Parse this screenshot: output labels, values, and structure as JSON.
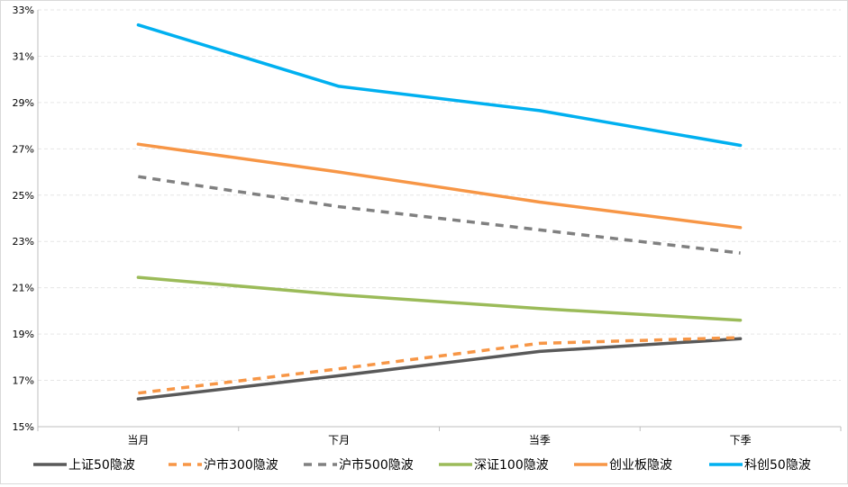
{
  "chart_data": {
    "type": "line",
    "title": "",
    "xlabel": "",
    "ylabel": "",
    "categories": [
      "当月",
      "下月",
      "当季",
      "下季"
    ],
    "ylim": [
      15,
      33
    ],
    "yticks": [
      15,
      17,
      19,
      21,
      23,
      25,
      27,
      29,
      31,
      33
    ],
    "ytick_labels": [
      "15%",
      "17%",
      "19%",
      "21%",
      "23%",
      "25%",
      "27%",
      "29%",
      "31%",
      "33%"
    ],
    "grid": true,
    "legend_position": "bottom",
    "series": [
      {
        "name": "上证50隐波",
        "values": [
          16.2,
          17.2,
          18.25,
          18.8
        ],
        "color": "#595959",
        "dash": "solid"
      },
      {
        "name": "沪市300隐波",
        "values": [
          16.45,
          17.5,
          18.6,
          18.85
        ],
        "color": "#f79646",
        "dash": "dashed"
      },
      {
        "name": "沪市500隐波",
        "values": [
          25.8,
          24.5,
          23.5,
          22.5
        ],
        "color": "#808080",
        "dash": "dashed"
      },
      {
        "name": "深证100隐波",
        "values": [
          21.45,
          20.7,
          20.1,
          19.6
        ],
        "color": "#9bbb59",
        "dash": "solid"
      },
      {
        "name": "创业板隐波",
        "values": [
          27.2,
          26.0,
          24.7,
          23.6
        ],
        "color": "#f79646",
        "dash": "solid"
      },
      {
        "name": "科创50隐波",
        "values": [
          32.35,
          29.7,
          28.65,
          27.15
        ],
        "color": "#00b0f0",
        "dash": "solid"
      }
    ]
  }
}
